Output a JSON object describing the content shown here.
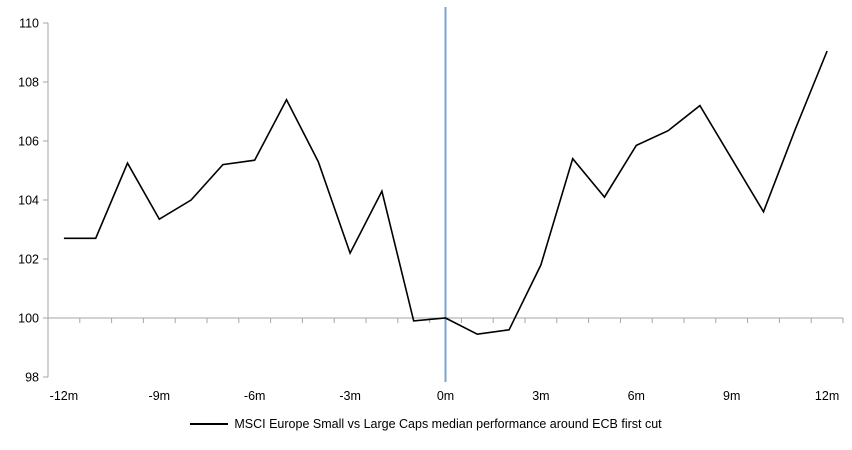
{
  "chart_data": {
    "type": "line",
    "title": "",
    "x_months": [
      -12,
      -11,
      -10,
      -9,
      -8,
      -7,
      -6,
      -5,
      -4,
      -3,
      -2,
      -1,
      0,
      1,
      2,
      3,
      4,
      5,
      6,
      7,
      8,
      9,
      10,
      11,
      12
    ],
    "series": [
      {
        "name": "MSCI Europe Small vs Large Caps median performance around ECB first cut",
        "color": "#000000",
        "values": [
          102.7,
          102.7,
          105.25,
          103.35,
          104.0,
          105.2,
          105.35,
          107.4,
          105.3,
          102.2,
          104.3,
          99.9,
          100.0,
          99.45,
          99.6,
          101.8,
          105.4,
          104.1,
          105.85,
          106.35,
          107.2,
          105.4,
          103.6,
          106.4,
          109.05
        ]
      }
    ],
    "y_axis": {
      "min": 98,
      "max": 110,
      "step": 2,
      "tick_labels": [
        "98",
        "100",
        "102",
        "104",
        "106",
        "108",
        "110"
      ]
    },
    "x_axis": {
      "tick_months": [
        -12,
        -9,
        -6,
        -3,
        0,
        3,
        6,
        9,
        12
      ],
      "tick_labels": [
        "-12m",
        "-9m",
        "-6m",
        "-3m",
        "0m",
        "3m",
        "6m",
        "9m",
        "12m"
      ]
    },
    "reference_lines": {
      "horizontal_at_value": 100,
      "vertical_at_month": 0,
      "vertical_line_color": "#7BA4CF",
      "horizontal_line_color": "#A6A6A6"
    },
    "axis_color": "#A6A6A6",
    "legend_position": "bottom",
    "grid": false
  },
  "legend": {
    "label": "MSCI Europe Small vs Large Caps median performance around ECB first cut"
  }
}
